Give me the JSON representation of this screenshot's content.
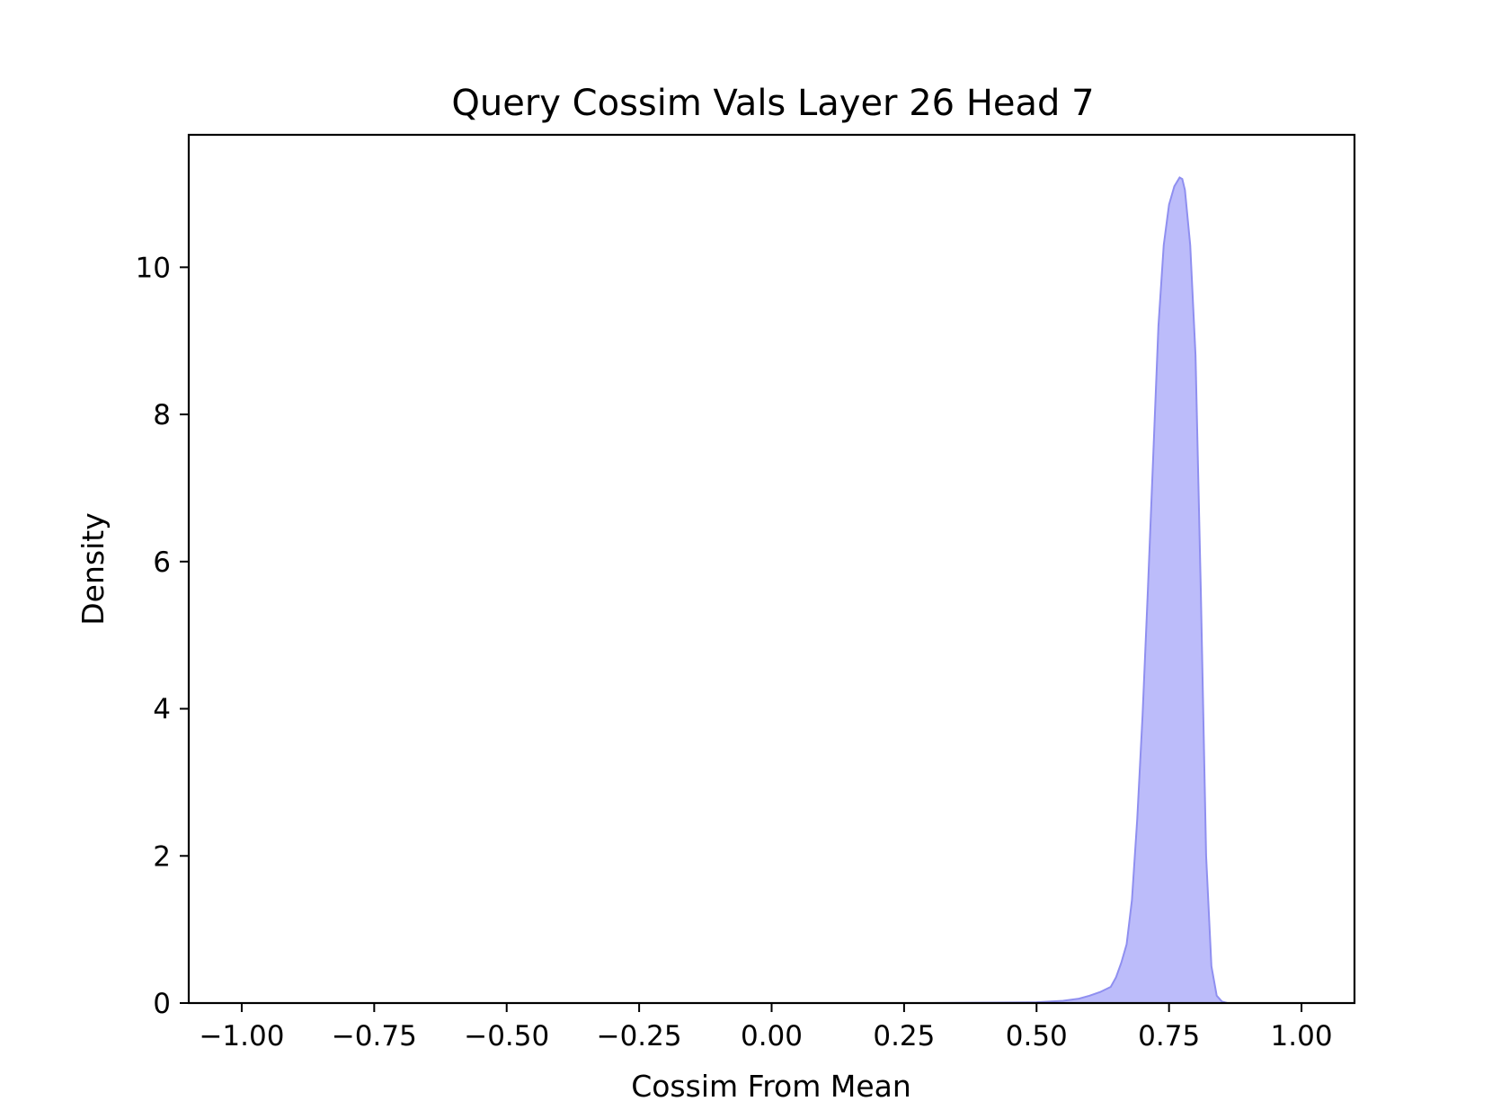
{
  "chart_data": {
    "type": "area",
    "title": "Query Cossim Vals Layer 26 Head 7",
    "xlabel": "Cossim From Mean",
    "ylabel": "Density",
    "xlim": [
      -1.1,
      1.1
    ],
    "ylim": [
      0,
      11.8
    ],
    "xticks": [
      -1.0,
      -0.75,
      -0.5,
      -0.25,
      0.0,
      0.25,
      0.5,
      0.75,
      1.0
    ],
    "xtick_labels": [
      "−1.00",
      "−0.75",
      "−0.50",
      "−0.25",
      "0.00",
      "0.25",
      "0.50",
      "0.75",
      "1.00"
    ],
    "yticks": [
      0,
      2,
      4,
      6,
      8,
      10
    ],
    "ytick_labels": [
      "0",
      "2",
      "4",
      "6",
      "8",
      "10"
    ],
    "grid": false,
    "series": [
      {
        "fill_color": "#bcbcfa",
        "line_color": "#8f8ff0",
        "x": [
          -0.53,
          -0.3,
          0.0,
          0.3,
          0.5,
          0.55,
          0.58,
          0.6,
          0.62,
          0.64,
          0.65,
          0.66,
          0.67,
          0.68,
          0.69,
          0.7,
          0.71,
          0.72,
          0.73,
          0.74,
          0.75,
          0.76,
          0.77,
          0.775,
          0.78,
          0.79,
          0.8,
          0.81,
          0.82,
          0.83,
          0.84,
          0.85,
          0.86
        ],
        "y": [
          0.0,
          0.0,
          0.0,
          0.0,
          0.01,
          0.03,
          0.06,
          0.1,
          0.15,
          0.22,
          0.35,
          0.55,
          0.8,
          1.4,
          2.5,
          3.9,
          5.6,
          7.4,
          9.2,
          10.3,
          10.85,
          11.1,
          11.22,
          11.2,
          11.05,
          10.3,
          8.8,
          5.6,
          2.0,
          0.5,
          0.1,
          0.02,
          0.0
        ]
      }
    ]
  }
}
